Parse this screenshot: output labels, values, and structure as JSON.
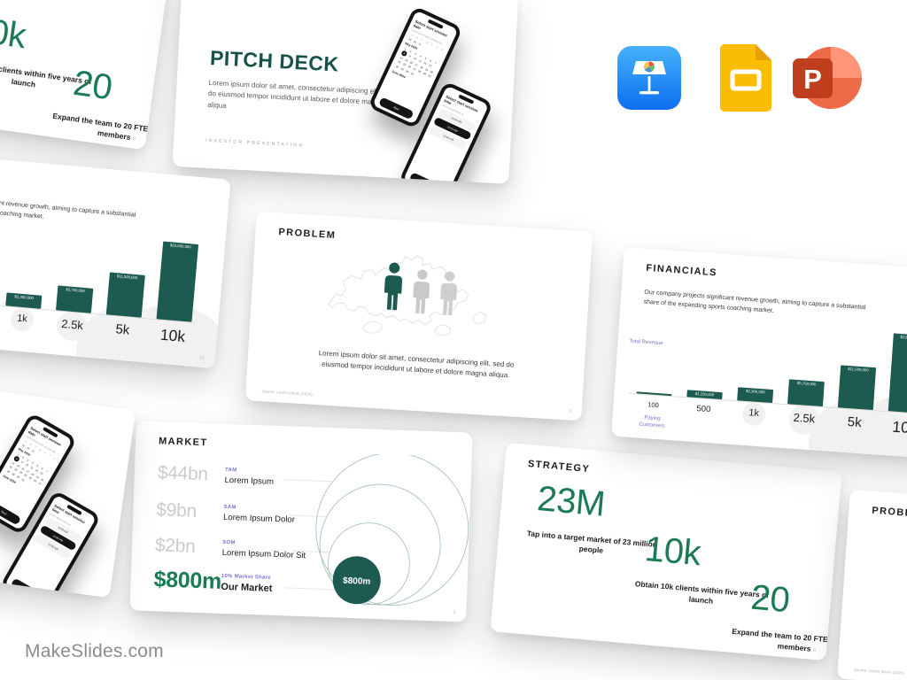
{
  "brand": "MakeSlides.com",
  "app_icons": [
    {
      "name": "keynote"
    },
    {
      "name": "google-slides"
    },
    {
      "name": "powerpoint",
      "letter": "P"
    }
  ],
  "slides": {
    "cover": {
      "title": "PITCH DECK",
      "body": "Lorem ipsum dolor sit amet, consectetur adipiscing elit, sed do eiusmod tempor incididunt ut labore et dolore magna aliqua",
      "footer": "INVESTOR  PRESENTATION",
      "phone_date": {
        "header": "Select start session date",
        "subheader": "Lorem ipsum dolor sit amet elit",
        "weekdays": [
          "S",
          "M",
          "T",
          "W",
          "T",
          "F",
          "S"
        ],
        "prev_days": [
          "29",
          "30",
          "31"
        ],
        "month_current": "May 2024",
        "month_next": "June 2024",
        "day_count": 31,
        "selected_day": 8,
        "next_label": "Next"
      },
      "phone_time": {
        "header": "Select start session time",
        "subheader": "Lorem ipsum dolor sit",
        "times": [
          "10:00 AM",
          "11:00 AM",
          "12:00 AM"
        ],
        "selected_index": 1,
        "next_label": "Next"
      }
    },
    "problem": {
      "title": "PROBLEM",
      "body": "Lorem ipsum dolor sit amet, consectetur adipiscing elit, sed do eiusmod tempor incididunt ut labore et dolore magna aliqua.",
      "source": "Source: Lorem Ipsum (2024)",
      "page": "3"
    },
    "market": {
      "title": "MARKET",
      "rows": [
        {
          "value": "$44bn",
          "tag": "TAM",
          "label": "Lorem Ipsum"
        },
        {
          "value": "$9bn",
          "tag": "SAM",
          "label": "Lorem Ipsum Dolor"
        },
        {
          "value": "$2bn",
          "tag": "SOM",
          "label": "Lorem Ipsum Dolor Sit"
        },
        {
          "value": "$800m",
          "tag": "10% Market Share",
          "label": "Our Market"
        }
      ],
      "bubble_label": "$800m",
      "page": "5"
    },
    "financials": {
      "title": "FINANCIALS",
      "body": "Our company projects significant revenue growth, aiming to capture a substantial share of the expanding sports coaching market.",
      "y_axis_label": "Total Revenue",
      "x_axis_label": "Paying Customers",
      "page": "12"
    },
    "strategy": {
      "title": "STRATEGY",
      "stats": [
        {
          "value": "23M",
          "caption": "Tap into a target market of 23 million people"
        },
        {
          "value": "10k",
          "caption": "Obtain 10k clients within five years of launch"
        },
        {
          "value": "20",
          "caption": "Expand the team to 20 FTEs & Staff members"
        }
      ],
      "page": "8"
    }
  },
  "chart_data": [
    {
      "type": "bar",
      "title": "FINANCIALS",
      "categories": [
        "100",
        "500",
        "1k",
        "2.5k",
        "5k",
        "10k"
      ],
      "values": [
        230000,
        1150000,
        2300000,
        5750000,
        11500000,
        23000000
      ],
      "value_labels": [
        "",
        "$1,150,000",
        "$2,300,000",
        "$5,750,000",
        "$11,500,000",
        "$23,000,000"
      ],
      "xlabel": "Paying Customers",
      "ylabel": "Total Revenue",
      "bar_color": "#1d5a50",
      "grid": false,
      "legend": "none"
    },
    {
      "type": "pie",
      "variant": "concentric-circles",
      "title": "MARKET",
      "labels": [
        "TAM",
        "SAM",
        "SOM",
        "Our Market"
      ],
      "values_text": [
        "$44bn",
        "$9bn",
        "$2bn",
        "$800m"
      ],
      "descriptions": [
        "Lorem Ipsum",
        "Lorem Ipsum Dolor",
        "Lorem Ipsum Dolor Sit",
        "Our Market"
      ],
      "highlight_label": "$800m",
      "highlight_color": "#1d5a50"
    }
  ],
  "colors": {
    "teal": "#1d5a50",
    "green": "#1b7b53",
    "purple": "#7478cb",
    "cover_title": "#17524a"
  }
}
